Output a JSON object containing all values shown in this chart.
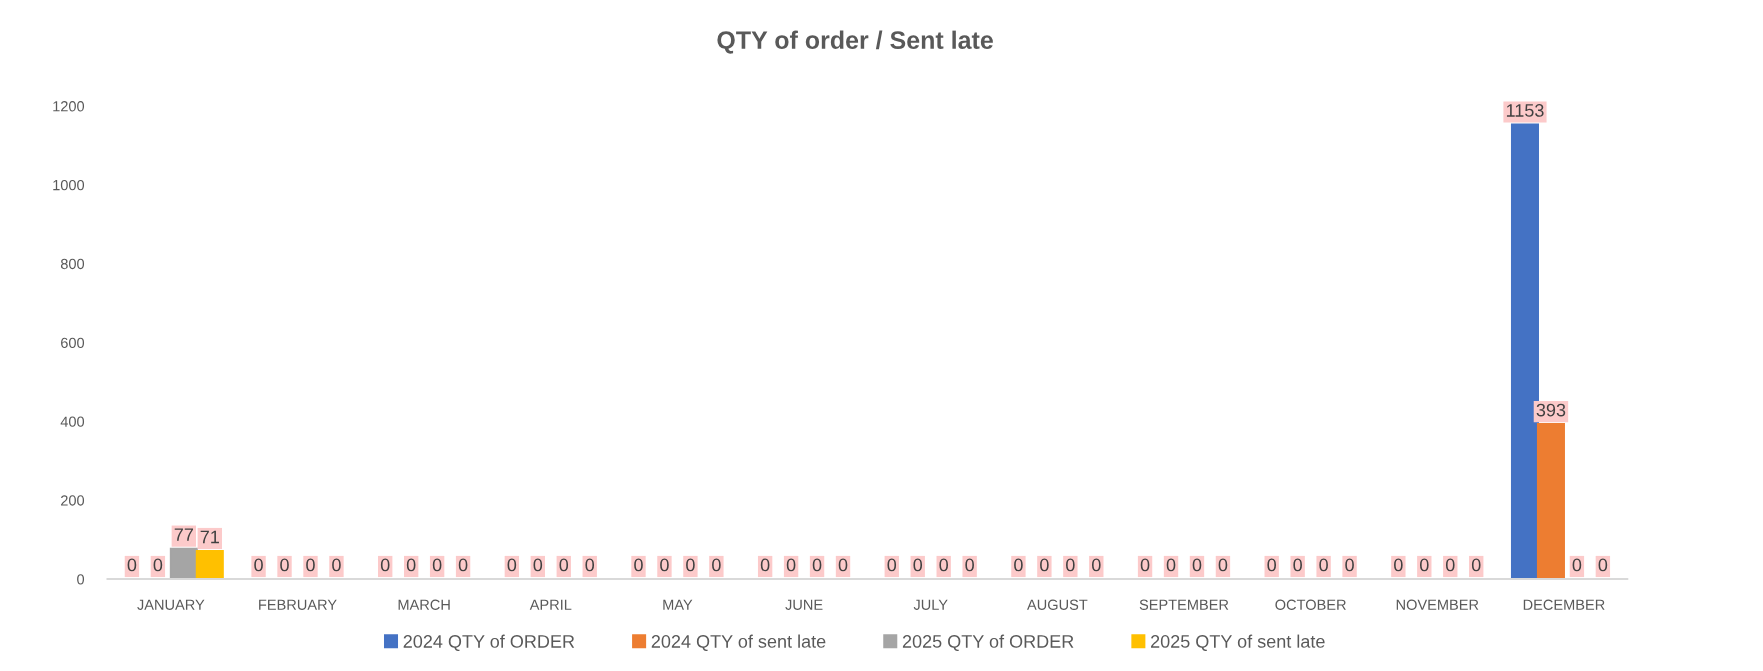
{
  "chart_data": {
    "type": "bar",
    "title": "QTY of order / Sent late",
    "categories": [
      "JANUARY",
      "FEBRUARY",
      "MARCH",
      "APRIL",
      "MAY",
      "JUNE",
      "JULY",
      "AUGUST",
      "SEPTEMBER",
      "OCTOBER",
      "NOVEMBER",
      "DECEMBER"
    ],
    "series": [
      {
        "name": "2024 QTY of ORDER",
        "color": "#4472c4",
        "values": [
          0,
          0,
          0,
          0,
          0,
          0,
          0,
          0,
          0,
          0,
          0,
          1153
        ]
      },
      {
        "name": "2024 QTY of sent late",
        "color": "#ed7d31",
        "values": [
          0,
          0,
          0,
          0,
          0,
          0,
          0,
          0,
          0,
          0,
          0,
          393
        ]
      },
      {
        "name": "2025 QTY of ORDER",
        "color": "#a5a5a5",
        "values": [
          77,
          0,
          0,
          0,
          0,
          0,
          0,
          0,
          0,
          0,
          0,
          0
        ]
      },
      {
        "name": "2025 QTY of sent late",
        "color": "#ffc000",
        "values": [
          71,
          0,
          0,
          0,
          0,
          0,
          0,
          0,
          0,
          0,
          0,
          0
        ]
      }
    ],
    "ylim": [
      0,
      1200
    ],
    "yticks": [
      0,
      200,
      400,
      600,
      800,
      1000,
      1200
    ],
    "grid": false,
    "legend": "bottom",
    "data_labels": true
  }
}
